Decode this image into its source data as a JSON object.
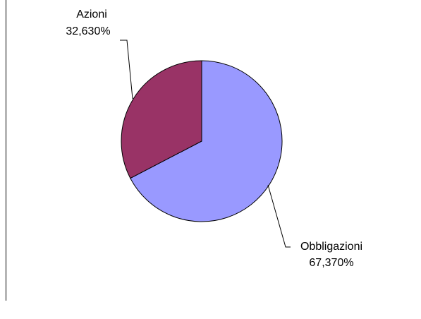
{
  "chart_data": {
    "type": "pie",
    "categories": [
      "Obbligazioni",
      "Azioni"
    ],
    "values": [
      67.37,
      32.63
    ],
    "value_labels": [
      "67,370%",
      "32,630%"
    ],
    "colors": [
      "#9999ff",
      "#993366"
    ],
    "start_angle": 0,
    "direction": "clockwise"
  }
}
